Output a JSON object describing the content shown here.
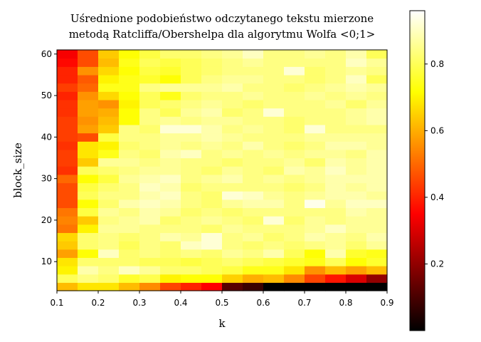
{
  "chart_data": {
    "type": "heatmap",
    "title_lines": [
      "Uśrednione podobieństwo odczytanego tekstu mierzone",
      "metodą Ratcliffa/Obershelpa dla algorytmu Wolfa <0;1>"
    ],
    "xlabel": "k",
    "ylabel": "block_size",
    "colormap": "hot",
    "x_range": [
      0.1,
      0.9
    ],
    "y_range": [
      3,
      61
    ],
    "x_ticks": [
      "0.1",
      "0.2",
      "0.3",
      "0.4",
      "0.5",
      "0.6",
      "0.7",
      "0.8",
      "0.9"
    ],
    "y_ticks": [
      "10",
      "20",
      "30",
      "40",
      "50",
      "60"
    ],
    "colorbar_range": [
      0.0,
      0.96
    ],
    "colorbar_ticks": [
      "0.2",
      "0.4",
      "0.6",
      "0.8"
    ],
    "x_values": [
      0.1,
      0.15,
      0.2,
      0.25,
      0.3,
      0.35,
      0.4,
      0.45,
      0.5,
      0.55,
      0.6,
      0.65,
      0.7,
      0.75,
      0.8,
      0.85
    ],
    "y_values": [
      3,
      5,
      7,
      9,
      11,
      13,
      15,
      17,
      19,
      21,
      23,
      25,
      27,
      29,
      31,
      33,
      35,
      37,
      39,
      41,
      43,
      45,
      47,
      49,
      51,
      53,
      55,
      57,
      59
    ],
    "values": [
      [
        0.62,
        0.68,
        0.68,
        0.62,
        0.55,
        0.45,
        0.4,
        0.35,
        0.12,
        0.08,
        0.0,
        0.0,
        0.0,
        0.0,
        0.0,
        0.0
      ],
      [
        0.8,
        0.84,
        0.82,
        0.76,
        0.79,
        0.7,
        0.72,
        0.72,
        0.65,
        0.6,
        0.62,
        0.55,
        0.45,
        0.38,
        0.3,
        0.2
      ],
      [
        0.7,
        0.88,
        0.84,
        0.9,
        0.86,
        0.82,
        0.82,
        0.8,
        0.78,
        0.74,
        0.74,
        0.68,
        0.56,
        0.62,
        0.58,
        0.62
      ],
      [
        0.68,
        0.82,
        0.82,
        0.82,
        0.8,
        0.8,
        0.78,
        0.8,
        0.82,
        0.8,
        0.78,
        0.76,
        0.74,
        0.8,
        0.72,
        0.76
      ],
      [
        0.58,
        0.72,
        0.9,
        0.82,
        0.84,
        0.82,
        0.84,
        0.82,
        0.86,
        0.84,
        0.88,
        0.8,
        0.72,
        0.88,
        0.76,
        0.74
      ],
      [
        0.64,
        0.82,
        0.84,
        0.8,
        0.84,
        0.82,
        0.9,
        0.92,
        0.84,
        0.82,
        0.84,
        0.82,
        0.84,
        0.86,
        0.82,
        0.86
      ],
      [
        0.66,
        0.82,
        0.84,
        0.82,
        0.84,
        0.88,
        0.86,
        0.92,
        0.84,
        0.86,
        0.82,
        0.84,
        0.88,
        0.86,
        0.84,
        0.88
      ],
      [
        0.52,
        0.7,
        0.86,
        0.86,
        0.84,
        0.84,
        0.84,
        0.82,
        0.86,
        0.84,
        0.84,
        0.84,
        0.86,
        0.9,
        0.86,
        0.86
      ],
      [
        0.54,
        0.64,
        0.84,
        0.86,
        0.88,
        0.82,
        0.84,
        0.86,
        0.84,
        0.82,
        0.92,
        0.82,
        0.86,
        0.84,
        0.86,
        0.86
      ],
      [
        0.52,
        0.78,
        0.86,
        0.84,
        0.88,
        0.86,
        0.82,
        0.84,
        0.82,
        0.84,
        0.84,
        0.84,
        0.84,
        0.84,
        0.88,
        0.86
      ],
      [
        0.46,
        0.72,
        0.82,
        0.88,
        0.9,
        0.88,
        0.84,
        0.82,
        0.86,
        0.88,
        0.88,
        0.84,
        0.94,
        0.86,
        0.9,
        0.9
      ],
      [
        0.46,
        0.8,
        0.84,
        0.84,
        0.88,
        0.9,
        0.84,
        0.82,
        0.92,
        0.9,
        0.86,
        0.84,
        0.86,
        0.88,
        0.88,
        0.86
      ],
      [
        0.46,
        0.78,
        0.82,
        0.84,
        0.9,
        0.88,
        0.82,
        0.84,
        0.84,
        0.84,
        0.84,
        0.82,
        0.84,
        0.88,
        0.86,
        0.88
      ],
      [
        0.5,
        0.72,
        0.78,
        0.86,
        0.88,
        0.9,
        0.84,
        0.86,
        0.88,
        0.84,
        0.86,
        0.84,
        0.86,
        0.88,
        0.88,
        0.88
      ],
      [
        0.42,
        0.8,
        0.82,
        0.84,
        0.86,
        0.86,
        0.84,
        0.82,
        0.86,
        0.84,
        0.82,
        0.88,
        0.86,
        0.9,
        0.86,
        0.88
      ],
      [
        0.44,
        0.64,
        0.86,
        0.86,
        0.84,
        0.86,
        0.84,
        0.84,
        0.82,
        0.84,
        0.84,
        0.86,
        0.82,
        0.88,
        0.86,
        0.88
      ],
      [
        0.44,
        0.68,
        0.74,
        0.84,
        0.82,
        0.88,
        0.9,
        0.84,
        0.86,
        0.84,
        0.86,
        0.84,
        0.86,
        0.86,
        0.84,
        0.88
      ],
      [
        0.42,
        0.68,
        0.7,
        0.82,
        0.84,
        0.86,
        0.84,
        0.86,
        0.84,
        0.88,
        0.84,
        0.82,
        0.84,
        0.88,
        0.88,
        0.86
      ],
      [
        0.44,
        0.46,
        0.78,
        0.84,
        0.84,
        0.86,
        0.86,
        0.88,
        0.86,
        0.84,
        0.84,
        0.84,
        0.86,
        0.86,
        0.86,
        0.86
      ],
      [
        0.44,
        0.58,
        0.64,
        0.84,
        0.82,
        0.92,
        0.92,
        0.88,
        0.84,
        0.86,
        0.84,
        0.82,
        0.92,
        0.84,
        0.84,
        0.84
      ],
      [
        0.44,
        0.56,
        0.62,
        0.72,
        0.84,
        0.86,
        0.84,
        0.86,
        0.86,
        0.84,
        0.84,
        0.82,
        0.84,
        0.84,
        0.86,
        0.88
      ],
      [
        0.42,
        0.58,
        0.6,
        0.72,
        0.84,
        0.8,
        0.86,
        0.88,
        0.82,
        0.84,
        0.92,
        0.84,
        0.84,
        0.84,
        0.86,
        0.88
      ],
      [
        0.42,
        0.58,
        0.56,
        0.7,
        0.8,
        0.82,
        0.84,
        0.86,
        0.84,
        0.82,
        0.84,
        0.84,
        0.84,
        0.86,
        0.82,
        0.86
      ],
      [
        0.4,
        0.56,
        0.66,
        0.72,
        0.8,
        0.74,
        0.82,
        0.84,
        0.84,
        0.86,
        0.84,
        0.84,
        0.86,
        0.84,
        0.86,
        0.84
      ],
      [
        0.44,
        0.5,
        0.74,
        0.74,
        0.84,
        0.86,
        0.86,
        0.86,
        0.88,
        0.84,
        0.84,
        0.82,
        0.84,
        0.86,
        0.88,
        0.86
      ],
      [
        0.4,
        0.48,
        0.7,
        0.74,
        0.76,
        0.72,
        0.8,
        0.84,
        0.86,
        0.86,
        0.84,
        0.84,
        0.82,
        0.84,
        0.9,
        0.8
      ],
      [
        0.4,
        0.56,
        0.66,
        0.72,
        0.78,
        0.76,
        0.8,
        0.82,
        0.84,
        0.84,
        0.84,
        0.92,
        0.82,
        0.84,
        0.86,
        0.84
      ],
      [
        0.36,
        0.46,
        0.62,
        0.74,
        0.8,
        0.78,
        0.8,
        0.82,
        0.84,
        0.86,
        0.84,
        0.84,
        0.84,
        0.84,
        0.9,
        0.86
      ],
      [
        0.34,
        0.46,
        0.64,
        0.72,
        0.78,
        0.82,
        0.82,
        0.84,
        0.86,
        0.9,
        0.84,
        0.84,
        0.86,
        0.84,
        0.88,
        0.8
      ]
    ]
  }
}
